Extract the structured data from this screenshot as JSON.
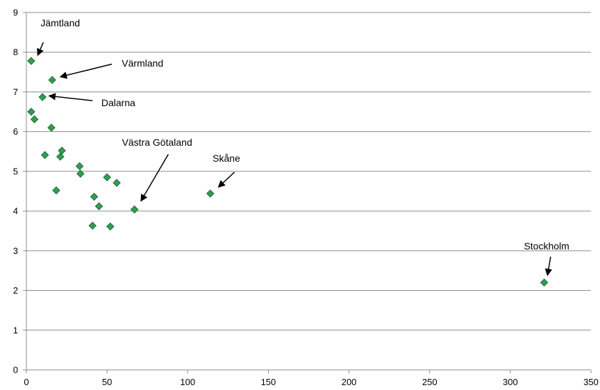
{
  "chart_data": {
    "type": "scatter",
    "title": "",
    "xlabel": "",
    "ylabel": "",
    "xlim": [
      0,
      350
    ],
    "ylim": [
      0,
      9
    ],
    "x_ticks": [
      "0",
      "50",
      "100",
      "150",
      "200",
      "250",
      "300",
      "350"
    ],
    "y_ticks": [
      "0",
      "1",
      "2",
      "3",
      "4",
      "5",
      "6",
      "7",
      "8",
      "9"
    ],
    "grid": "horizontal",
    "marker": "diamond",
    "marker_color": "#2e9e4f",
    "series": [
      {
        "points": [
          {
            "x": 3,
            "y": 7.78
          },
          {
            "x": 16,
            "y": 7.3
          },
          {
            "x": 10,
            "y": 6.87
          },
          {
            "x": 3,
            "y": 6.5
          },
          {
            "x": 5,
            "y": 6.31
          },
          {
            "x": 15.5,
            "y": 6.1
          },
          {
            "x": 22,
            "y": 5.52
          },
          {
            "x": 11.5,
            "y": 5.41
          },
          {
            "x": 21,
            "y": 5.37
          },
          {
            "x": 33,
            "y": 5.13
          },
          {
            "x": 33.5,
            "y": 4.94
          },
          {
            "x": 50,
            "y": 4.85
          },
          {
            "x": 56,
            "y": 4.71
          },
          {
            "x": 18.5,
            "y": 4.52
          },
          {
            "x": 42,
            "y": 4.36
          },
          {
            "x": 45,
            "y": 4.12
          },
          {
            "x": 67,
            "y": 4.04
          },
          {
            "x": 114,
            "y": 4.44
          },
          {
            "x": 41,
            "y": 3.63
          },
          {
            "x": 52,
            "y": 3.61
          },
          {
            "x": 321,
            "y": 2.2
          }
        ]
      }
    ],
    "annotations": [
      {
        "text": "Jämtland",
        "label_x": 21,
        "label_y": 8.74,
        "arrow_from": [
          10.5,
          8.25
        ],
        "arrow_to": [
          7,
          7.92
        ]
      },
      {
        "text": "Värmland",
        "label_x": 72,
        "label_y": 7.72,
        "arrow_from": [
          53,
          7.7
        ],
        "arrow_to": [
          21,
          7.38
        ]
      },
      {
        "text": "Dalarna",
        "label_x": 57,
        "label_y": 6.73,
        "arrow_from": [
          41,
          6.78
        ],
        "arrow_to": [
          14,
          6.9
        ]
      },
      {
        "text": "Västra Götaland",
        "label_x": 81,
        "label_y": 5.73,
        "arrow_from": [
          88,
          5.43
        ],
        "arrow_to": [
          71,
          4.25
        ]
      },
      {
        "text": "Skåne",
        "label_x": 124,
        "label_y": 5.33,
        "arrow_from": [
          129,
          4.98
        ],
        "arrow_to": [
          119,
          4.6
        ]
      },
      {
        "text": "Stockholm",
        "label_x": 322.5,
        "label_y": 3.12,
        "arrow_from": [
          325,
          2.85
        ],
        "arrow_to": [
          323,
          2.38
        ]
      }
    ]
  }
}
